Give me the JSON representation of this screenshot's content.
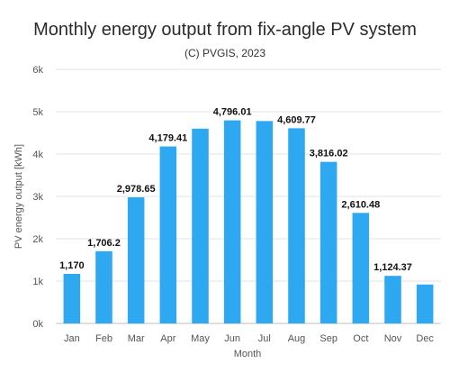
{
  "chart_data": {
    "type": "bar",
    "title": "Monthly energy output from fix-angle PV system",
    "subtitle": "(C) PVGIS, 2023",
    "xlabel": "Month",
    "ylabel": "PV energy output [kWh]",
    "ylim": [
      0,
      6000
    ],
    "yticks": [
      {
        "value": 0,
        "label": "0k"
      },
      {
        "value": 1000,
        "label": "1k"
      },
      {
        "value": 2000,
        "label": "2k"
      },
      {
        "value": 3000,
        "label": "3k"
      },
      {
        "value": 4000,
        "label": "4k"
      },
      {
        "value": 5000,
        "label": "5k"
      },
      {
        "value": 6000,
        "label": "6k"
      }
    ],
    "grid": true,
    "categories": [
      "Jan",
      "Feb",
      "Mar",
      "Apr",
      "May",
      "Jun",
      "Jul",
      "Aug",
      "Sep",
      "Oct",
      "Nov",
      "Dec"
    ],
    "values": [
      1170,
      1706.2,
      2978.65,
      4179.41,
      4600,
      4796.01,
      4780,
      4609.77,
      3816.02,
      2610.48,
      1124.37,
      920
    ],
    "data_labels": [
      "1,170",
      "1,706.2",
      "2,978.65",
      "4,179.41",
      "",
      "4,796.01",
      "",
      "4,609.77",
      "3,816.02",
      "2,610.48",
      "1,124.37",
      ""
    ],
    "bar_color": "#2ea8f0",
    "grid_color": "#e3e3e3"
  }
}
